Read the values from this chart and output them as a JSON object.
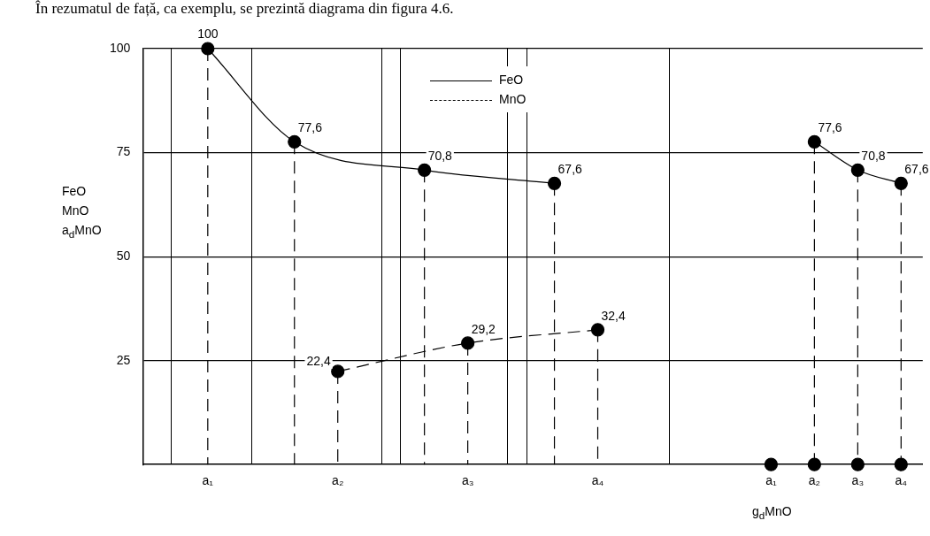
{
  "chart_data": {
    "type": "line",
    "annotations": [
      "În rezumatul de față, ca exemplu, se prezintă diagrama din figura 4.6."
    ],
    "ylabel": "FeO\nMnO\na$_{d}$MnO",
    "xlabel": "g$_{d}$MnO",
    "categories": [
      null,
      "a₁",
      null,
      null,
      "a₂",
      null,
      null,
      "a₃",
      null,
      null,
      "a₄",
      null,
      null,
      null,
      "a₁",
      "a₂",
      "a₃",
      "a₄"
    ],
    "ylim": [
      0,
      100
    ],
    "yticks": [
      25,
      50,
      75,
      100
    ],
    "grid": true,
    "legend": "top",
    "marker": "circle",
    "series": [
      {
        "name": "FeO",
        "color": "#000000",
        "line_style": "solid",
        "values": [
          null,
          100,
          null,
          77.6,
          null,
          null,
          70.8,
          null,
          null,
          67.6,
          null,
          null,
          null,
          null,
          null,
          null,
          null,
          null
        ],
        "value_labels": [
          null,
          "100",
          null,
          "77,6",
          null,
          null,
          "70,8",
          null,
          null,
          "67,6",
          null,
          null,
          null,
          null,
          null,
          null,
          null,
          null
        ]
      },
      {
        "name": "MnO",
        "color": "#000000",
        "line_style": "dashed",
        "values": [
          null,
          null,
          null,
          null,
          22.4,
          null,
          null,
          29.2,
          null,
          null,
          32.4,
          null,
          null,
          null,
          null,
          null,
          null,
          null
        ],
        "value_labels": [
          null,
          null,
          null,
          null,
          "22,4",
          null,
          null,
          "29,2",
          null,
          null,
          "32,4",
          null,
          null,
          null,
          null,
          null,
          null,
          null
        ]
      },
      {
        "color": "#000000",
        "line_style": "solid",
        "values": [
          null,
          null,
          null,
          null,
          null,
          null,
          null,
          null,
          null,
          null,
          null,
          null,
          null,
          null,
          null,
          77.6,
          70.8,
          67.6
        ],
        "value_labels": [
          null,
          null,
          null,
          null,
          null,
          null,
          null,
          null,
          null,
          null,
          null,
          null,
          null,
          null,
          null,
          "77,6",
          "70,8",
          "67,6"
        ]
      },
      {
        "type": "scatter",
        "color": "#000000",
        "values": [
          null,
          null,
          null,
          null,
          null,
          null,
          null,
          null,
          null,
          null,
          null,
          null,
          null,
          null,
          0,
          0,
          0,
          0
        ]
      }
    ]
  }
}
